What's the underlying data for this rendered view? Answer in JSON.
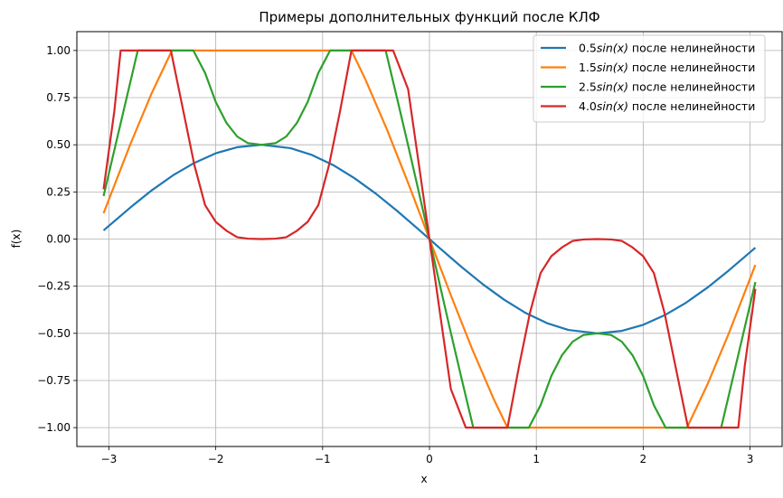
{
  "chart_data": {
    "type": "line",
    "title": "Примеры дополнительных функций после КЛФ",
    "xlabel": "x",
    "ylabel": "f(x)",
    "xlim": [
      -3.3,
      3.3
    ],
    "ylim": [
      -1.1,
      1.1
    ],
    "grid": true,
    "legend_position": "top-right",
    "x_ticks": [
      {
        "value": -3,
        "label": "−3"
      },
      {
        "value": -2,
        "label": "−2"
      },
      {
        "value": -1,
        "label": "−1"
      },
      {
        "value": 0,
        "label": "0"
      },
      {
        "value": 1,
        "label": "1"
      },
      {
        "value": 2,
        "label": "2"
      },
      {
        "value": 3,
        "label": "3"
      }
    ],
    "y_ticks": [
      {
        "value": -1.0,
        "label": "−1.00"
      },
      {
        "value": -0.75,
        "label": "−0.75"
      },
      {
        "value": -0.5,
        "label": "−0.50"
      },
      {
        "value": -0.25,
        "label": "−0.25"
      },
      {
        "value": 0.0,
        "label": "0.00"
      },
      {
        "value": 0.25,
        "label": "0.25"
      },
      {
        "value": 0.5,
        "label": "0.50"
      },
      {
        "value": 0.75,
        "label": "0.75"
      },
      {
        "value": 1.0,
        "label": "1.00"
      }
    ],
    "series": [
      {
        "name": "0.5sin(x) после нелинейности",
        "legend_prefix": "0.5",
        "legend_italic": "sin(x)",
        "legend_suffix": " после нелинейности",
        "color": "#1f77b4",
        "points": [
          [
            -3.05,
            0.046
          ],
          [
            -2.8,
            0.167
          ],
          [
            -2.6,
            0.258
          ],
          [
            -2.4,
            0.338
          ],
          [
            -2.2,
            0.404
          ],
          [
            -2.0,
            0.455
          ],
          [
            -1.8,
            0.487
          ],
          [
            -1.571,
            0.5
          ],
          [
            -1.3,
            0.482
          ],
          [
            -1.1,
            0.446
          ],
          [
            -0.9,
            0.392
          ],
          [
            -0.7,
            0.322
          ],
          [
            -0.5,
            0.24
          ],
          [
            -0.3,
            0.148
          ],
          [
            -0.1,
            0.05
          ],
          [
            0.0,
            0.0
          ],
          [
            0.1,
            -0.05
          ],
          [
            0.3,
            -0.148
          ],
          [
            0.5,
            -0.24
          ],
          [
            0.7,
            -0.322
          ],
          [
            0.9,
            -0.392
          ],
          [
            1.1,
            -0.446
          ],
          [
            1.3,
            -0.482
          ],
          [
            1.571,
            -0.5
          ],
          [
            1.8,
            -0.487
          ],
          [
            2.0,
            -0.455
          ],
          [
            2.2,
            -0.404
          ],
          [
            2.4,
            -0.338
          ],
          [
            2.6,
            -0.258
          ],
          [
            2.8,
            -0.167
          ],
          [
            3.05,
            -0.046
          ]
        ]
      },
      {
        "name": "1.5sin(x) после нелинейности",
        "legend_prefix": "1.5",
        "legend_italic": "sin(x)",
        "legend_suffix": " после нелинейности",
        "color": "#ff7f0e",
        "points": [
          [
            -3.05,
            0.137
          ],
          [
            -2.8,
            0.502
          ],
          [
            -2.6,
            0.773
          ],
          [
            -2.41,
            1.0
          ],
          [
            -0.73,
            1.0
          ],
          [
            -0.6,
            0.847
          ],
          [
            -0.4,
            0.584
          ],
          [
            -0.2,
            0.298
          ],
          [
            0.0,
            0.0
          ],
          [
            0.2,
            -0.298
          ],
          [
            0.4,
            -0.584
          ],
          [
            0.6,
            -0.847
          ],
          [
            0.73,
            -1.0
          ],
          [
            2.41,
            -1.0
          ],
          [
            2.6,
            -0.773
          ],
          [
            2.8,
            -0.502
          ],
          [
            3.05,
            -0.137
          ]
        ]
      },
      {
        "name": "2.5sin(x) после нелинейности",
        "legend_prefix": "2.5",
        "legend_italic": "sin(x)",
        "legend_suffix": " после нелинейности",
        "color": "#2ca02c",
        "points": [
          [
            -3.05,
            0.228
          ],
          [
            -2.9,
            0.59
          ],
          [
            -2.73,
            1.0
          ],
          [
            -2.21,
            1.0
          ],
          [
            -2.1,
            0.881
          ],
          [
            -2.0,
            0.727
          ],
          [
            -1.9,
            0.616
          ],
          [
            -1.8,
            0.544
          ],
          [
            -1.7,
            0.509
          ],
          [
            -1.571,
            0.5
          ],
          [
            -1.44,
            0.509
          ],
          [
            -1.34,
            0.544
          ],
          [
            -1.24,
            0.616
          ],
          [
            -1.14,
            0.727
          ],
          [
            -1.04,
            0.881
          ],
          [
            -0.93,
            1.0
          ],
          [
            -0.41,
            1.0
          ],
          [
            -0.3,
            0.739
          ],
          [
            -0.2,
            0.497
          ],
          [
            -0.1,
            0.25
          ],
          [
            0.0,
            0.0
          ],
          [
            0.1,
            -0.25
          ],
          [
            0.2,
            -0.497
          ],
          [
            0.3,
            -0.739
          ],
          [
            0.41,
            -1.0
          ],
          [
            0.93,
            -1.0
          ],
          [
            1.04,
            -0.881
          ],
          [
            1.14,
            -0.727
          ],
          [
            1.24,
            -0.616
          ],
          [
            1.34,
            -0.544
          ],
          [
            1.44,
            -0.509
          ],
          [
            1.571,
            -0.5
          ],
          [
            1.7,
            -0.509
          ],
          [
            1.8,
            -0.544
          ],
          [
            1.9,
            -0.616
          ],
          [
            2.0,
            -0.727
          ],
          [
            2.1,
            -0.881
          ],
          [
            2.21,
            -1.0
          ],
          [
            2.73,
            -1.0
          ],
          [
            2.9,
            -0.59
          ],
          [
            3.05,
            -0.228
          ]
        ]
      },
      {
        "name": "4.0sin(x) после нелинейности",
        "legend_prefix": "4.0",
        "legend_italic": "sin(x)",
        "legend_suffix": " после нелинейности",
        "color": "#d62728",
        "points": [
          [
            -3.05,
            0.264
          ],
          [
            -2.95,
            0.675
          ],
          [
            -2.89,
            1.0
          ],
          [
            -2.42,
            1.0
          ],
          [
            -2.3,
            0.669
          ],
          [
            -2.2,
            0.392
          ],
          [
            -2.1,
            0.18
          ],
          [
            -2.0,
            0.091
          ],
          [
            -1.9,
            0.0442
          ],
          [
            -1.8,
            0.01
          ],
          [
            -1.7,
            0.002
          ],
          [
            -1.571,
            0.0
          ],
          [
            -1.44,
            0.002
          ],
          [
            -1.34,
            0.01
          ],
          [
            -1.24,
            0.0442
          ],
          [
            -1.14,
            0.091
          ],
          [
            -1.04,
            0.18
          ],
          [
            -0.94,
            0.392
          ],
          [
            -0.84,
            0.669
          ],
          [
            -0.73,
            1.0
          ],
          [
            -0.34,
            1.0
          ],
          [
            -0.2,
            0.795
          ],
          [
            -0.1,
            0.399
          ],
          [
            0.0,
            0.0
          ],
          [
            0.1,
            -0.399
          ],
          [
            0.2,
            -0.795
          ],
          [
            0.34,
            -1.0
          ],
          [
            0.73,
            -1.0
          ],
          [
            0.84,
            -0.669
          ],
          [
            0.94,
            -0.392
          ],
          [
            1.04,
            -0.18
          ],
          [
            1.14,
            -0.091
          ],
          [
            1.24,
            -0.0442
          ],
          [
            1.34,
            -0.01
          ],
          [
            1.44,
            -0.002
          ],
          [
            1.571,
            0.0
          ],
          [
            1.7,
            -0.002
          ],
          [
            1.8,
            -0.01
          ],
          [
            1.9,
            -0.0442
          ],
          [
            2.0,
            -0.091
          ],
          [
            2.1,
            -0.18
          ],
          [
            2.2,
            -0.392
          ],
          [
            2.3,
            -0.669
          ],
          [
            2.42,
            -1.0
          ],
          [
            2.89,
            -1.0
          ],
          [
            2.95,
            -0.675
          ],
          [
            3.05,
            -0.264
          ]
        ]
      }
    ]
  }
}
